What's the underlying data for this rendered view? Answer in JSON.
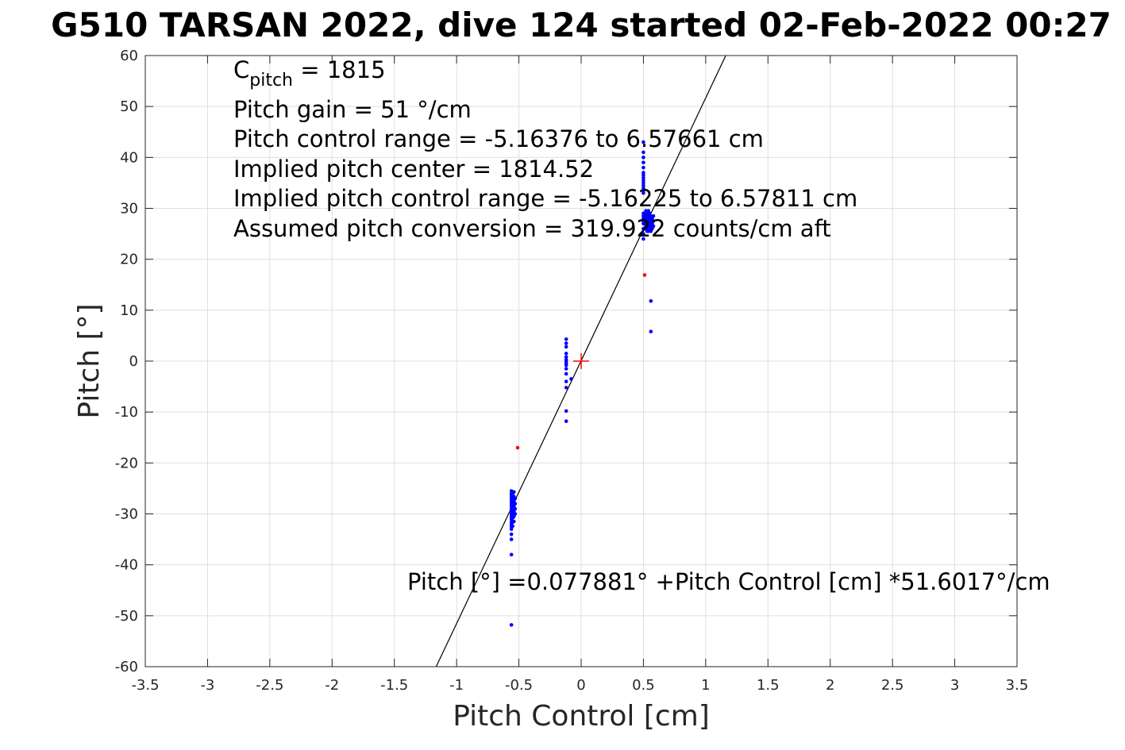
{
  "chart_data": {
    "type": "scatter",
    "title": "G510 TARSAN 2022, dive 124 started 02-Feb-2022 00:27",
    "xlabel": "Pitch Control [cm]",
    "ylabel": "Pitch [°]",
    "xlim": [
      -3.5,
      3.5
    ],
    "ylim": [
      -60,
      60
    ],
    "xticks": [
      -3.5,
      -3,
      -2.5,
      -2,
      -1.5,
      -1,
      -0.5,
      0,
      0.5,
      1,
      1.5,
      2,
      2.5,
      3,
      3.5
    ],
    "xtick_labels": [
      "-3.5",
      "-3",
      "-2.5",
      "-2",
      "-1.5",
      "-1",
      "-0.5",
      "0",
      "0.5",
      "1",
      "1.5",
      "2",
      "2.5",
      "3",
      "3.5"
    ],
    "yticks": [
      60,
      50,
      40,
      30,
      20,
      10,
      0,
      -10,
      -20,
      -30,
      -40,
      -50,
      -60
    ],
    "ytick_labels": [
      "60",
      "50",
      "40",
      "30",
      "20",
      "10",
      "0",
      "-10",
      "-20",
      "-30",
      "-40",
      "-50",
      "-60"
    ],
    "grid": true,
    "annotations": {
      "cpitch_base": "C",
      "cpitch_sub": "pitch",
      "cpitch_value": " = 1815",
      "lines": [
        "Pitch gain = 51 °/cm",
        "Pitch control range = -5.16376 to 6.57661 cm",
        "Implied pitch center = 1814.52",
        "Implied pitch control range = -5.16225 to 6.57811 cm",
        "Assumed pitch conversion = 319.922 counts/cm aft"
      ],
      "fit_equation": "Pitch [°] =0.077881° +Pitch Control [cm] *51.6017°/cm"
    },
    "fit_line": {
      "intercept": 0.077881,
      "slope": 51.6017
    },
    "center_marker": {
      "x": 0,
      "y": 0,
      "color": "#ff0000"
    },
    "series": [
      {
        "color": "#0000ff",
        "marker": "dot",
        "points": [
          [
            -0.56,
            -25.5
          ],
          [
            -0.56,
            -26
          ],
          [
            -0.56,
            -26.5
          ],
          [
            -0.56,
            -27
          ],
          [
            -0.56,
            -27.5
          ],
          [
            -0.56,
            -28
          ],
          [
            -0.56,
            -28.5
          ],
          [
            -0.56,
            -29
          ],
          [
            -0.56,
            -29.5
          ],
          [
            -0.56,
            -30
          ],
          [
            -0.56,
            -30.5
          ],
          [
            -0.56,
            -31
          ],
          [
            -0.56,
            -31.5
          ],
          [
            -0.56,
            -32
          ],
          [
            -0.56,
            -32.5
          ],
          [
            -0.56,
            -33
          ],
          [
            -0.56,
            -34
          ],
          [
            -0.56,
            -35
          ],
          [
            -0.56,
            -38
          ],
          [
            -0.56,
            -51.8
          ],
          [
            -0.55,
            -26
          ],
          [
            -0.55,
            -26.8
          ],
          [
            -0.55,
            -27.6
          ],
          [
            -0.55,
            -28.4
          ],
          [
            -0.55,
            -29.2
          ],
          [
            -0.55,
            -30
          ],
          [
            -0.55,
            -30.8
          ],
          [
            -0.55,
            -31.6
          ],
          [
            -0.55,
            -32.4
          ],
          [
            -0.54,
            -25.7
          ],
          [
            -0.54,
            -26.6
          ],
          [
            -0.54,
            -27.5
          ],
          [
            -0.54,
            -28.5
          ],
          [
            -0.54,
            -29.5
          ],
          [
            -0.54,
            -30.5
          ],
          [
            -0.54,
            -31.5
          ],
          [
            -0.53,
            -27
          ],
          [
            -0.53,
            -28
          ],
          [
            -0.53,
            -29
          ],
          [
            -0.53,
            -30
          ],
          [
            -0.12,
            4.3
          ],
          [
            -0.12,
            3.5
          ],
          [
            -0.12,
            2.8
          ],
          [
            -0.12,
            1.5
          ],
          [
            -0.12,
            0.8
          ],
          [
            -0.12,
            0.3
          ],
          [
            -0.12,
            0
          ],
          [
            -0.12,
            -0.4
          ],
          [
            -0.12,
            -0.8
          ],
          [
            -0.12,
            -1.5
          ],
          [
            -0.12,
            -2.5
          ],
          [
            -0.12,
            -4
          ],
          [
            -0.12,
            -5.2
          ],
          [
            -0.12,
            -9.8
          ],
          [
            -0.12,
            -11.8
          ],
          [
            -0.08,
            -3.5
          ],
          [
            0.5,
            43
          ],
          [
            0.5,
            41
          ],
          [
            0.5,
            40
          ],
          [
            0.5,
            39
          ],
          [
            0.5,
            38
          ],
          [
            0.5,
            37
          ],
          [
            0.5,
            36.5
          ],
          [
            0.5,
            36
          ],
          [
            0.5,
            35.5
          ],
          [
            0.5,
            35
          ],
          [
            0.5,
            34.5
          ],
          [
            0.5,
            34
          ],
          [
            0.5,
            33.5
          ],
          [
            0.5,
            33
          ],
          [
            0.5,
            29
          ],
          [
            0.5,
            28.5
          ],
          [
            0.5,
            28
          ],
          [
            0.5,
            27.5
          ],
          [
            0.5,
            27
          ],
          [
            0.5,
            26
          ],
          [
            0.5,
            25
          ],
          [
            0.5,
            24
          ],
          [
            0.51,
            29
          ],
          [
            0.51,
            28
          ],
          [
            0.51,
            27
          ],
          [
            0.51,
            26
          ],
          [
            0.52,
            29.5
          ],
          [
            0.52,
            28.5
          ],
          [
            0.52,
            27.5
          ],
          [
            0.52,
            26.5
          ],
          [
            0.53,
            29
          ],
          [
            0.53,
            28
          ],
          [
            0.53,
            27
          ],
          [
            0.53,
            26
          ],
          [
            0.53,
            25.5
          ],
          [
            0.54,
            29.5
          ],
          [
            0.54,
            28.5
          ],
          [
            0.54,
            27.5
          ],
          [
            0.54,
            26.5
          ],
          [
            0.54,
            25.5
          ],
          [
            0.55,
            29
          ],
          [
            0.55,
            28
          ],
          [
            0.55,
            27
          ],
          [
            0.55,
            26
          ],
          [
            0.56,
            28.5
          ],
          [
            0.56,
            27.5
          ],
          [
            0.56,
            26.5
          ],
          [
            0.56,
            25.5
          ],
          [
            0.57,
            28
          ],
          [
            0.57,
            27
          ],
          [
            0.57,
            26
          ],
          [
            0.58,
            28.5
          ],
          [
            0.58,
            27.5
          ],
          [
            0.58,
            26.5
          ],
          [
            0.56,
            11.8
          ],
          [
            0.56,
            5.8
          ]
        ]
      },
      {
        "color": "#ff0000",
        "marker": "dot",
        "points": [
          [
            -0.51,
            -17
          ],
          [
            0.51,
            16.9
          ]
        ]
      }
    ]
  }
}
